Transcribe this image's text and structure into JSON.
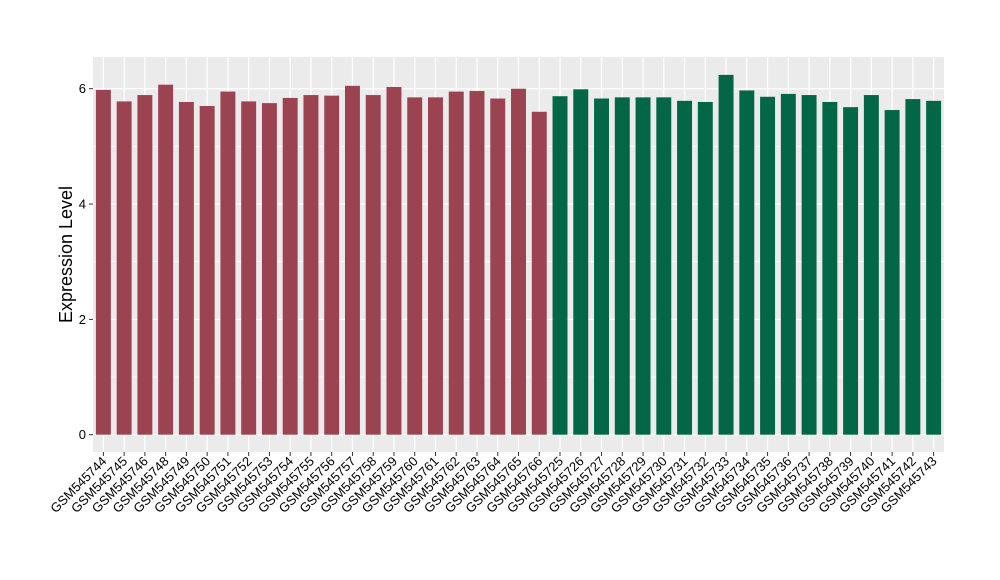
{
  "chart_data": {
    "type": "bar",
    "xlabel": "",
    "ylabel": "Expression Level",
    "ylim": [
      -0.3,
      6.55
    ],
    "yticks": [
      0,
      2,
      4,
      6
    ],
    "grid": true,
    "legend": "none",
    "panel_background": "#ebebeb",
    "categories": [
      "GSM545744",
      "GSM545745",
      "GSM545746",
      "GSM545748",
      "GSM545749",
      "GSM545750",
      "GSM545751",
      "GSM545752",
      "GSM545753",
      "GSM545754",
      "GSM545755",
      "GSM545756",
      "GSM545757",
      "GSM545758",
      "GSM545759",
      "GSM545760",
      "GSM545761",
      "GSM545762",
      "GSM545763",
      "GSM545764",
      "GSM545765",
      "GSM545766",
      "GSM545725",
      "GSM545726",
      "GSM545727",
      "GSM545728",
      "GSM545729",
      "GSM545730",
      "GSM545731",
      "GSM545732",
      "GSM545733",
      "GSM545734",
      "GSM545735",
      "GSM545736",
      "GSM545737",
      "GSM545738",
      "GSM545739",
      "GSM545740",
      "GSM545741",
      "GSM545742",
      "GSM545743"
    ],
    "values": [
      5.98,
      5.78,
      5.89,
      6.07,
      5.77,
      5.7,
      5.95,
      5.78,
      5.75,
      5.84,
      5.89,
      5.88,
      6.05,
      5.89,
      6.03,
      5.85,
      5.85,
      5.95,
      5.96,
      5.83,
      6.0,
      5.6,
      5.87,
      5.99,
      5.83,
      5.85,
      5.85,
      5.85,
      5.79,
      5.77,
      6.24,
      5.97,
      5.86,
      5.91,
      5.89,
      5.77,
      5.68,
      5.89,
      5.63,
      5.82,
      5.79
    ],
    "colors": [
      "#9c4351",
      "#9c4351",
      "#9c4351",
      "#9c4351",
      "#9c4351",
      "#9c4351",
      "#9c4351",
      "#9c4351",
      "#9c4351",
      "#9c4351",
      "#9c4351",
      "#9c4351",
      "#9c4351",
      "#9c4351",
      "#9c4351",
      "#9c4351",
      "#9c4351",
      "#9c4351",
      "#9c4351",
      "#9c4351",
      "#9c4351",
      "#9c4351",
      "#026647",
      "#026647",
      "#026647",
      "#026647",
      "#026647",
      "#026647",
      "#026647",
      "#026647",
      "#026647",
      "#026647",
      "#026647",
      "#026647",
      "#026647",
      "#026647",
      "#026647",
      "#026647",
      "#026647",
      "#026647",
      "#026647"
    ]
  }
}
